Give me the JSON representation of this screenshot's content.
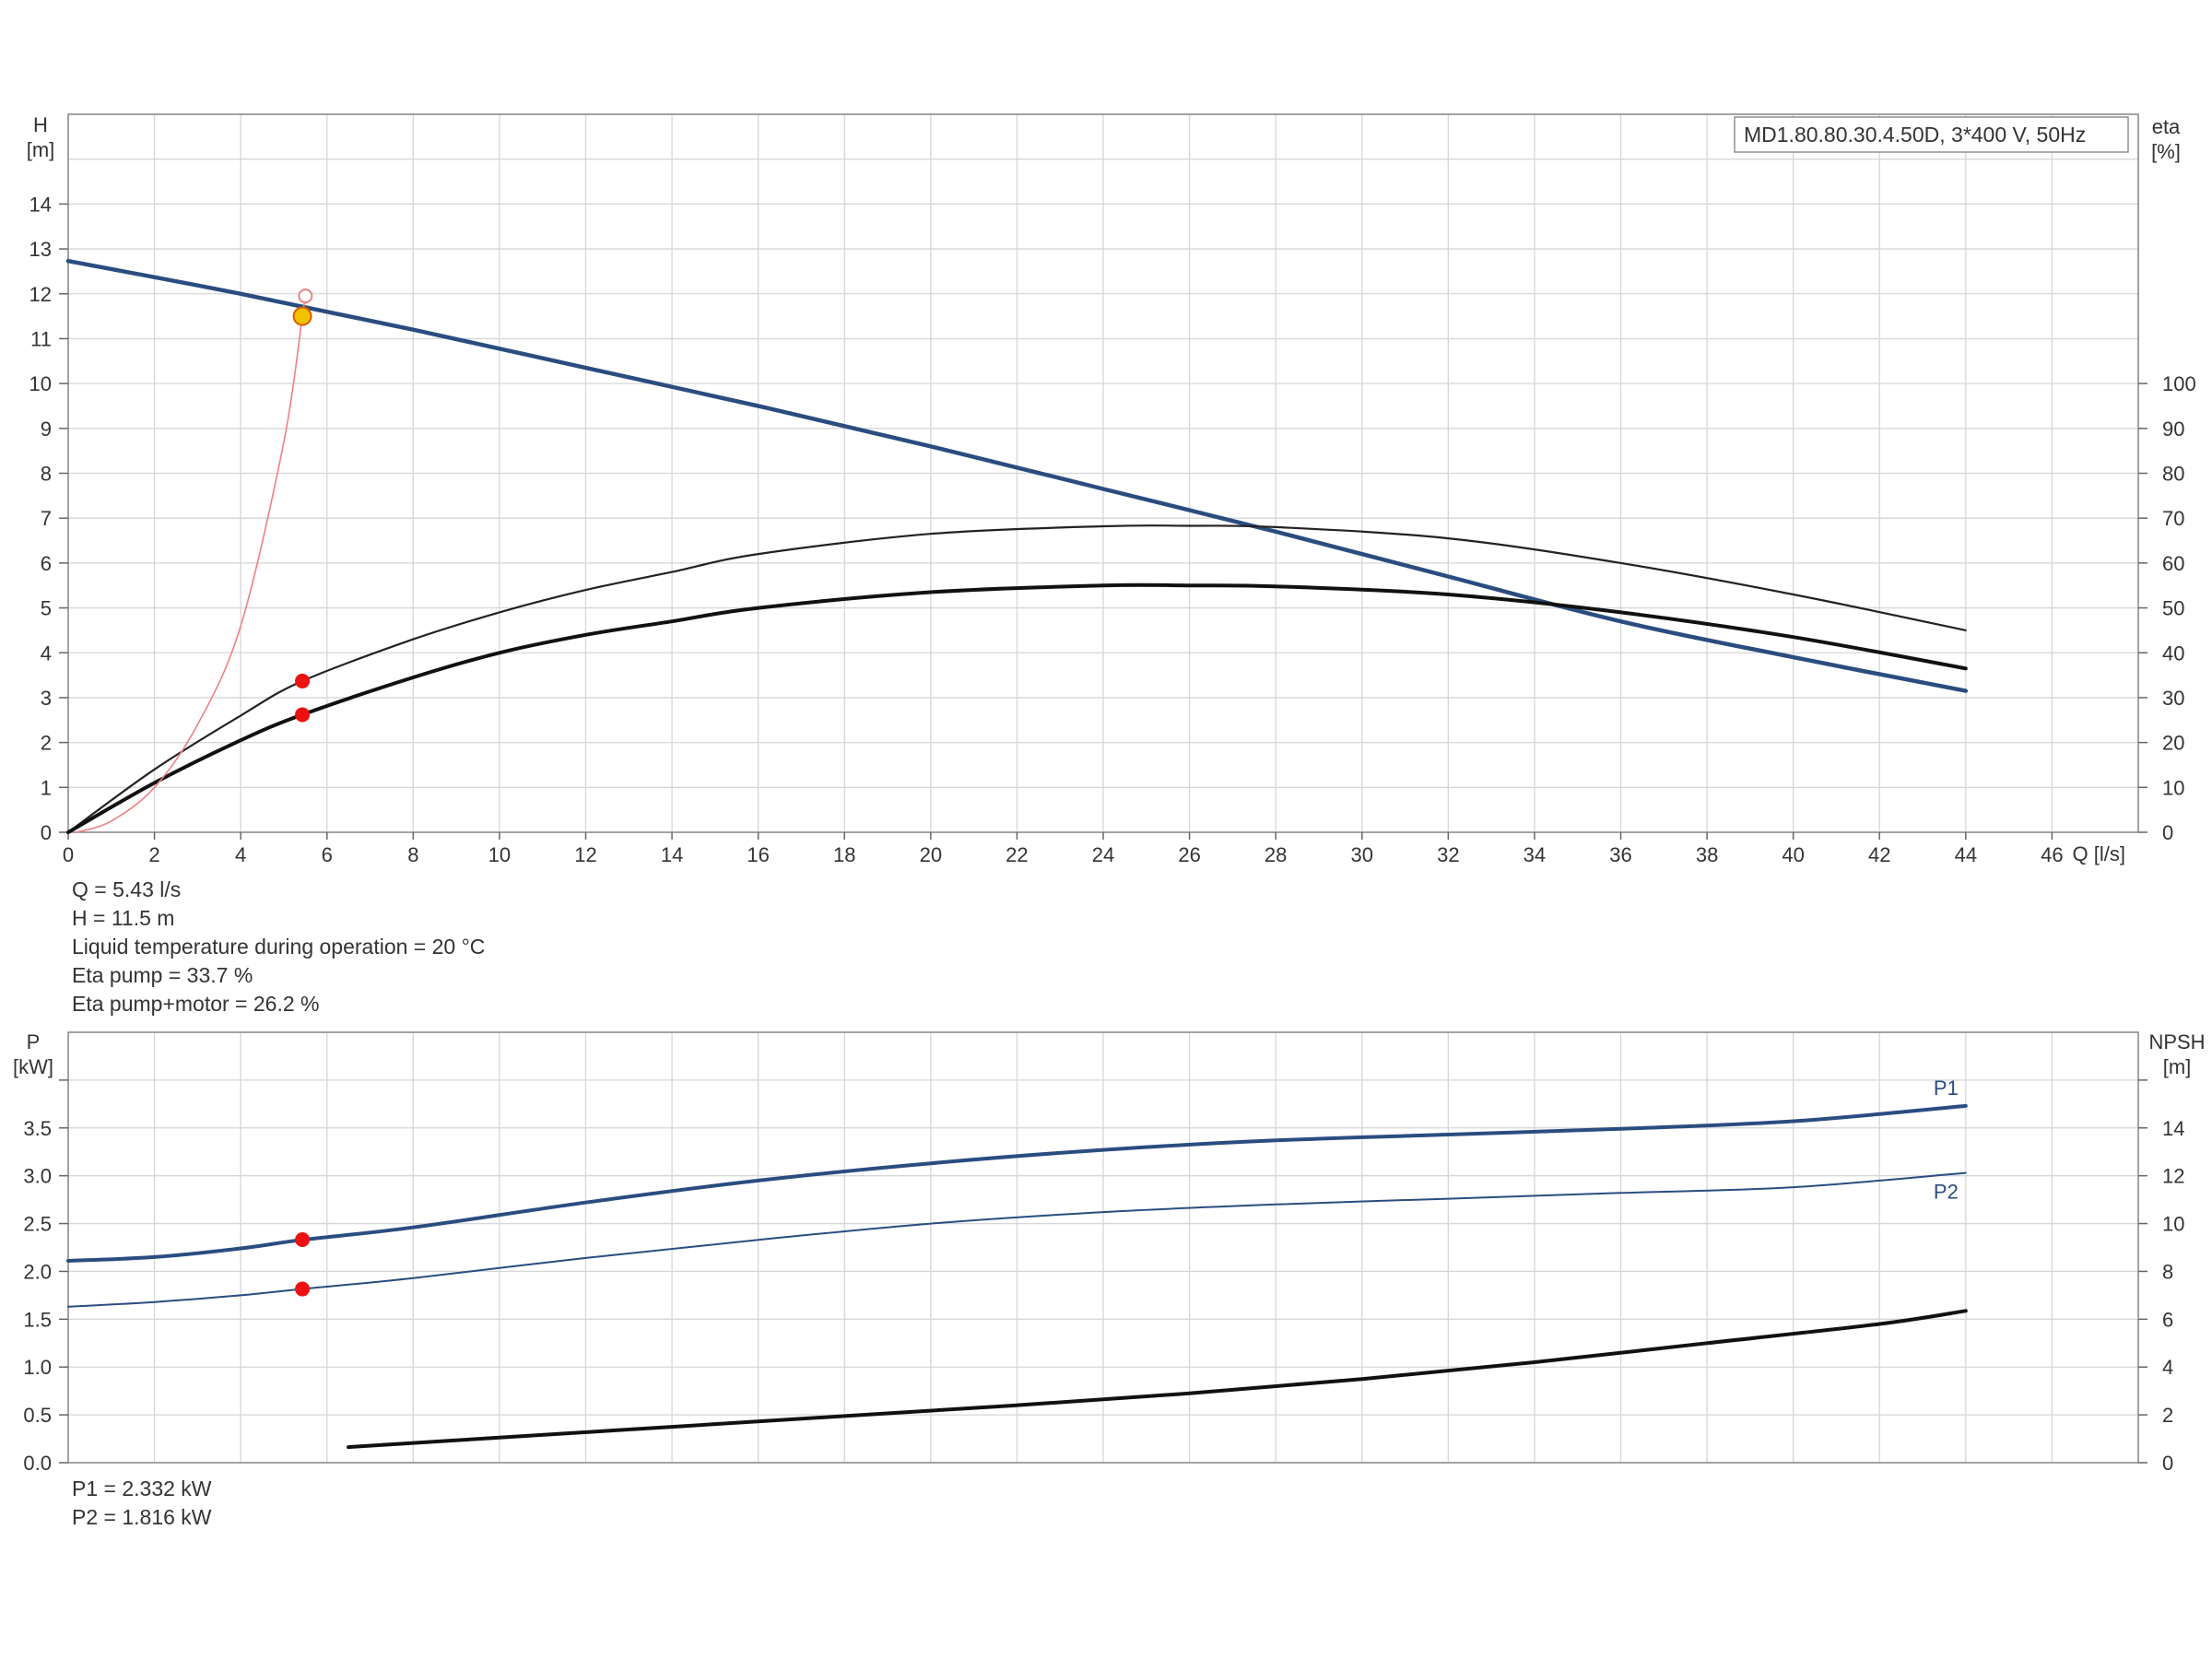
{
  "chart_data": [
    {
      "type": "line",
      "title": "",
      "legend_box": "MD1.80.80.30.4.50D, 3*400 V, 50Hz",
      "xlabel": "Q [l/s]",
      "ylabel": "H\n[m]",
      "ylabel_right": "eta\n[%]",
      "xlim": [
        0,
        48
      ],
      "ylim": [
        0,
        16
      ],
      "ylim_right": [
        0,
        160
      ],
      "x_ticks": [
        0,
        2,
        4,
        6,
        8,
        10,
        12,
        14,
        16,
        18,
        20,
        22,
        24,
        26,
        28,
        30,
        32,
        34,
        36,
        38,
        40,
        42,
        44,
        46
      ],
      "y_ticks": [
        0,
        1,
        2,
        3,
        4,
        5,
        6,
        7,
        8,
        9,
        10,
        11,
        12,
        13,
        14
      ],
      "y_ticks_right": [
        0,
        10,
        20,
        30,
        40,
        50,
        60,
        70,
        80,
        90,
        100
      ],
      "grid": true,
      "series": [
        {
          "key": "H",
          "color": "#2a4d80",
          "width": 4.5,
          "axis": "left",
          "x": [
            0,
            4,
            8,
            12,
            16,
            20,
            24,
            28,
            32,
            36,
            40,
            44
          ],
          "y": [
            12.73,
            12.0,
            11.2,
            10.35,
            9.5,
            8.6,
            7.65,
            6.7,
            5.7,
            4.7,
            3.9,
            3.15
          ]
        },
        {
          "key": "eta_pump",
          "color": "#222222",
          "width": 2.2,
          "axis": "right",
          "x": [
            0,
            2,
            4,
            5.43,
            8,
            10,
            12,
            14,
            16,
            20,
            24,
            26,
            28,
            32,
            36,
            40,
            44
          ],
          "y": [
            0,
            14,
            26,
            33.7,
            43,
            49,
            54,
            58,
            62,
            66.5,
            68.2,
            68.3,
            68,
            65.5,
            60,
            53,
            45
          ]
        },
        {
          "key": "eta_pump_motor",
          "color": "#111111",
          "width": 4,
          "axis": "right",
          "x": [
            0,
            2,
            4,
            5.43,
            8,
            10,
            12,
            14,
            16,
            20,
            24,
            26,
            28,
            32,
            36,
            40,
            44
          ],
          "y": [
            0,
            11,
            20.5,
            26.2,
            34.5,
            40,
            44,
            47,
            50,
            53.5,
            55,
            55,
            54.8,
            53,
            49,
            43.5,
            36.5
          ]
        },
        {
          "key": "system",
          "color": "#f08080",
          "width": 1.6,
          "axis": "left",
          "x": [
            0.2,
            1,
            2,
            3,
            4,
            5,
            5.43,
            5.5
          ],
          "y": [
            0,
            0.25,
            1.0,
            2.4,
            4.6,
            8.7,
            11.5,
            11.9
          ]
        }
      ],
      "duty_points": [
        {
          "x": 5.43,
          "y": 11.5,
          "axis": "left",
          "color": "#f2c200"
        },
        {
          "x": 5.43,
          "y": 33.7,
          "axis": "right",
          "color": "#ee1111"
        },
        {
          "x": 5.43,
          "y": 26.2,
          "axis": "right",
          "color": "#ee1111"
        }
      ]
    },
    {
      "type": "line",
      "title": "",
      "ylabel": "P\n[kW]",
      "ylabel_right": "NPSH\n[m]",
      "xlim": [
        0,
        48
      ],
      "ylim": [
        0,
        4.5
      ],
      "ylim_right": [
        0,
        18
      ],
      "y_ticks": [
        "0.0",
        "0.5",
        "1.0",
        "1.5",
        "2.0",
        "2.5",
        "3.0",
        "3.5"
      ],
      "y_ticks_right": [
        0,
        2,
        4,
        6,
        8,
        10,
        12,
        14
      ],
      "grid": true,
      "series": [
        {
          "name": "P1",
          "color": "#2a4d80",
          "width": 4,
          "axis": "left",
          "x": [
            0,
            2,
            4,
            5.43,
            8,
            12,
            16,
            20,
            24,
            28,
            32,
            36,
            40,
            44
          ],
          "y": [
            2.11,
            2.15,
            2.24,
            2.33,
            2.46,
            2.72,
            2.95,
            3.13,
            3.27,
            3.37,
            3.43,
            3.49,
            3.57,
            3.73
          ]
        },
        {
          "name": "P2",
          "color": "#2a4d80",
          "width": 2,
          "axis": "left",
          "x": [
            0,
            2,
            4,
            5.43,
            8,
            12,
            16,
            20,
            24,
            28,
            32,
            36,
            40,
            44
          ],
          "y": [
            1.63,
            1.68,
            1.75,
            1.816,
            1.93,
            2.14,
            2.33,
            2.5,
            2.62,
            2.7,
            2.76,
            2.82,
            2.88,
            3.03
          ]
        },
        {
          "key": "NPSH",
          "color": "#111111",
          "width": 4,
          "axis": "right",
          "x": [
            6.5,
            10,
            14,
            18,
            22,
            26,
            30,
            34,
            38,
            42,
            44
          ],
          "y": [
            0.65,
            1.05,
            1.5,
            1.95,
            2.4,
            2.9,
            3.5,
            4.2,
            5.0,
            5.8,
            6.35
          ]
        }
      ],
      "duty_points": [
        {
          "x": 5.43,
          "y": 2.332,
          "axis": "left",
          "color": "#ee1111"
        },
        {
          "x": 5.43,
          "y": 1.816,
          "axis": "left",
          "color": "#ee1111"
        }
      ]
    }
  ],
  "duty_info": [
    "Q = 5.43 l/s",
    "H = 11.5 m",
    "Liquid temperature during operation = 20 °C",
    "Eta pump = 33.7 %",
    "Eta pump+motor = 26.2 %"
  ],
  "power_info": [
    "P1 = 2.332 kW",
    "P2 = 1.816 kW"
  ]
}
